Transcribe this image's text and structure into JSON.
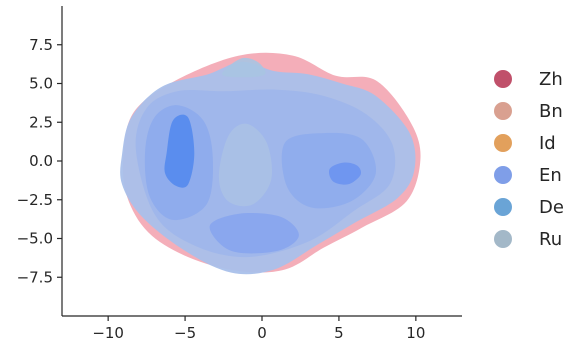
{
  "chart_data": {
    "type": "kde_density",
    "title": "",
    "xlabel": "",
    "ylabel": "",
    "xlim": [
      -13,
      13
    ],
    "ylim": [
      -10,
      10
    ],
    "x_ticks": [
      -10,
      -5,
      0,
      5,
      10
    ],
    "x_tick_labels": [
      "−10",
      "−5",
      "0",
      "5",
      "10"
    ],
    "y_ticks": [
      7.5,
      5.0,
      2.5,
      0.0,
      -2.5,
      -5.0,
      -7.5
    ],
    "y_tick_labels": [
      "7.5",
      "5.0",
      "2.5",
      "0.0",
      "−2.5",
      "−5.0",
      "−7.5"
    ],
    "grid": false,
    "legend_position": "right",
    "series": [
      {
        "name": "Zh",
        "color": "#c0506a"
      },
      {
        "name": "Bn",
        "color": "#d9a090"
      },
      {
        "name": "Id",
        "color": "#e2a05c"
      },
      {
        "name": "En",
        "color": "#7f9ee8"
      },
      {
        "name": "De",
        "color": "#6aa4d6"
      },
      {
        "name": "Ru",
        "color": "#a3b8c8"
      }
    ],
    "regions": [
      {
        "series": "Zh",
        "fill": "#f2a0ad",
        "opacity": 0.85,
        "outline": [
          [
            -9.0,
            0.5
          ],
          [
            -8.3,
            3.2
          ],
          [
            -5.6,
            5.2
          ],
          [
            -1.5,
            6.8
          ],
          [
            2.0,
            6.8
          ],
          [
            4.8,
            5.5
          ],
          [
            7.4,
            5.2
          ],
          [
            9.6,
            2.6
          ],
          [
            10.3,
            0.2
          ],
          [
            9.4,
            -2.6
          ],
          [
            6.5,
            -4.3
          ],
          [
            4.0,
            -5.6
          ],
          [
            1.5,
            -7.0
          ],
          [
            -1.5,
            -7.1
          ],
          [
            -4.8,
            -6.2
          ],
          [
            -7.4,
            -4.6
          ],
          [
            -8.8,
            -2.2
          ]
        ]
      },
      {
        "series": "Ru",
        "fill": "#a9c0ea",
        "opacity": 0.95,
        "outline": [
          [
            -9.1,
            0.4
          ],
          [
            -8.5,
            2.8
          ],
          [
            -6.5,
            4.8
          ],
          [
            -3.5,
            5.6
          ],
          [
            -1.3,
            6.4
          ],
          [
            0.8,
            5.8
          ],
          [
            3.0,
            5.6
          ],
          [
            5.2,
            5.0
          ],
          [
            7.4,
            4.2
          ],
          [
            9.6,
            1.8
          ],
          [
            9.9,
            -0.6
          ],
          [
            8.8,
            -2.4
          ],
          [
            6.0,
            -4.0
          ],
          [
            3.6,
            -5.4
          ],
          [
            0.8,
            -7.0
          ],
          [
            -2.0,
            -7.2
          ],
          [
            -5.0,
            -5.8
          ],
          [
            -7.8,
            -3.6
          ],
          [
            -9.1,
            -1.5
          ]
        ]
      },
      {
        "series": "En",
        "fill": "#9ab4ec",
        "opacity": 0.7,
        "outline": [
          [
            -8.2,
            0.8
          ],
          [
            -7.5,
            3.4
          ],
          [
            -5.5,
            4.5
          ],
          [
            -2.5,
            4.5
          ],
          [
            1.0,
            4.6
          ],
          [
            4.0,
            4.2
          ],
          [
            6.8,
            3.0
          ],
          [
            8.5,
            1.0
          ],
          [
            8.3,
            -1.5
          ],
          [
            6.0,
            -3.2
          ],
          [
            3.0,
            -5.2
          ],
          [
            -1.0,
            -6.2
          ],
          [
            -4.5,
            -5.4
          ],
          [
            -7.0,
            -3.4
          ]
        ]
      },
      {
        "series": "En",
        "fill": "#86a6ee",
        "opacity": 0.65,
        "outline": [
          [
            -7.6,
            0.6
          ],
          [
            -7.0,
            2.8
          ],
          [
            -5.5,
            3.6
          ],
          [
            -3.8,
            2.6
          ],
          [
            -3.2,
            0.2
          ],
          [
            -3.6,
            -2.8
          ],
          [
            -5.8,
            -3.8
          ],
          [
            -7.3,
            -2.3
          ]
        ]
      },
      {
        "series": "En",
        "fill": "#86a6ee",
        "opacity": 0.6,
        "outline": [
          [
            1.5,
            1.2
          ],
          [
            4.0,
            1.8
          ],
          [
            6.5,
            1.4
          ],
          [
            7.4,
            -0.8
          ],
          [
            5.8,
            -2.6
          ],
          [
            3.2,
            -3.0
          ],
          [
            1.6,
            -1.6
          ]
        ]
      },
      {
        "series": "En",
        "fill": "#7c9cf0",
        "opacity": 0.6,
        "outline": [
          [
            -3.4,
            -4.2
          ],
          [
            -1.5,
            -3.4
          ],
          [
            1.2,
            -3.6
          ],
          [
            2.4,
            -4.8
          ],
          [
            1.0,
            -5.8
          ],
          [
            -2.0,
            -5.8
          ]
        ]
      },
      {
        "series": "En",
        "fill": "#4c86ee",
        "opacity": 0.8,
        "outline": [
          [
            -6.2,
            0.5
          ],
          [
            -5.8,
            2.6
          ],
          [
            -4.8,
            2.8
          ],
          [
            -4.4,
            0.5
          ],
          [
            -4.8,
            -1.5
          ],
          [
            -5.6,
            -1.6
          ],
          [
            -6.3,
            -0.8
          ]
        ]
      },
      {
        "series": "En",
        "fill": "#6a92f0",
        "opacity": 0.85,
        "outline": [
          [
            4.4,
            -0.5
          ],
          [
            5.3,
            -0.1
          ],
          [
            6.2,
            -0.3
          ],
          [
            6.4,
            -0.9
          ],
          [
            5.6,
            -1.5
          ],
          [
            4.6,
            -1.3
          ]
        ]
      },
      {
        "series": "Ru",
        "fill": "#aac1e6",
        "opacity": 0.9,
        "outline": [
          [
            -2.8,
            -1.0
          ],
          [
            -2.2,
            1.6
          ],
          [
            -1.0,
            2.4
          ],
          [
            0.3,
            1.2
          ],
          [
            0.6,
            -1.2
          ],
          [
            -0.6,
            -2.8
          ],
          [
            -2.2,
            -2.6
          ]
        ]
      },
      {
        "series": "De",
        "fill": "#a8c4e2",
        "opacity": 0.9,
        "outline": [
          [
            -2.6,
            5.6
          ],
          [
            -1.4,
            6.6
          ],
          [
            -0.3,
            6.4
          ],
          [
            0.2,
            5.6
          ],
          [
            -1.2,
            5.4
          ]
        ]
      }
    ]
  }
}
